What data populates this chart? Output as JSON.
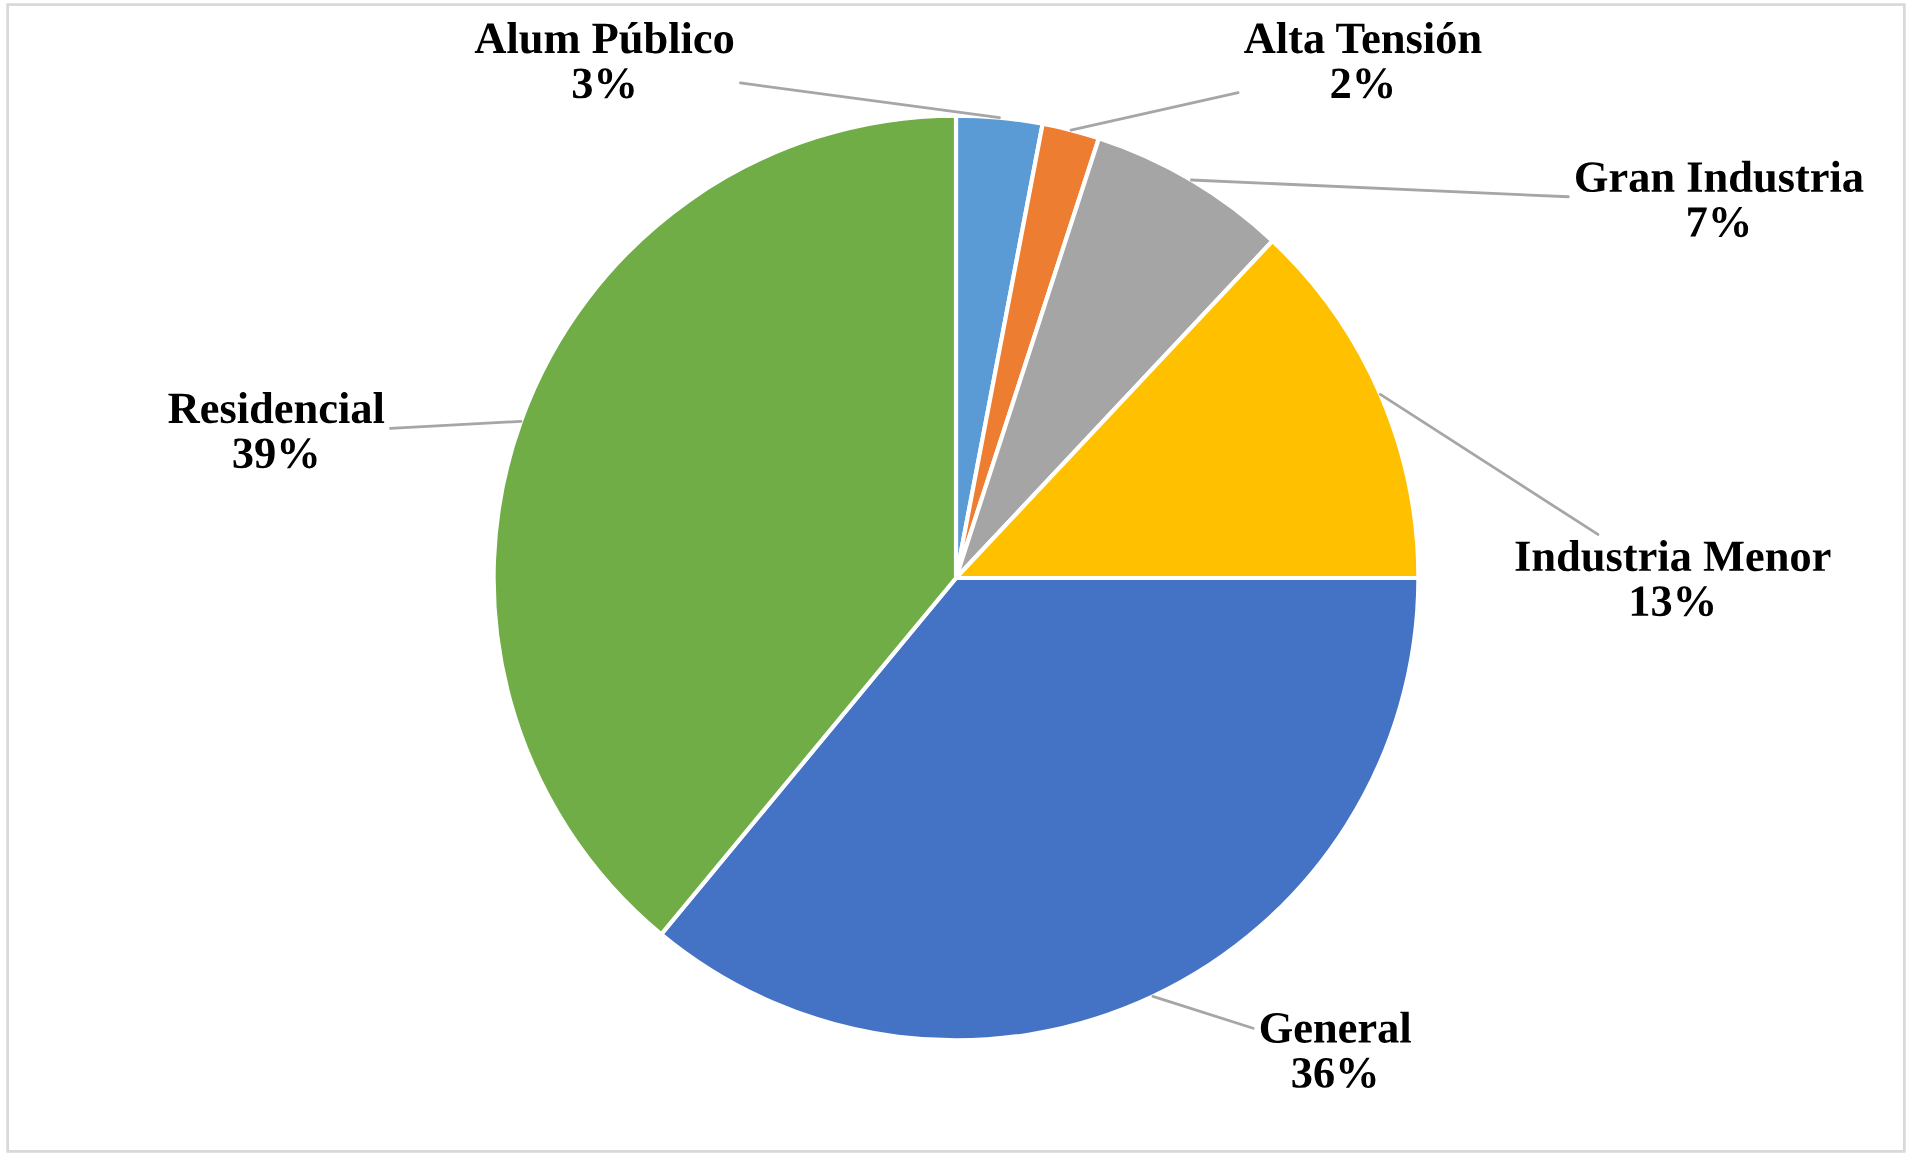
{
  "chart_data": {
    "type": "pie",
    "categories": [
      "Alum Público",
      "Alta Tensión",
      "Gran Industria",
      "Industria Menor",
      "General",
      "Residencial"
    ],
    "values": [
      3,
      2,
      7,
      13,
      36,
      39
    ],
    "value_labels": [
      "3%",
      "2%",
      "7%",
      "13%",
      "36%",
      "39%"
    ],
    "colors": [
      "#5b9bd5",
      "#ed7d31",
      "#a5a5a5",
      "#ffc000",
      "#4472c4",
      "#70ad47"
    ],
    "legend": false
  }
}
